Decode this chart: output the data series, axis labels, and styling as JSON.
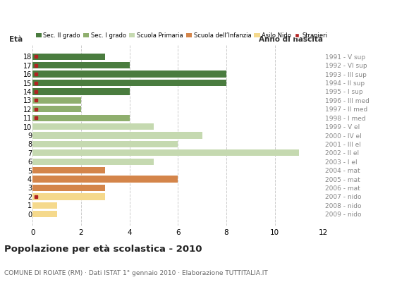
{
  "ages": [
    18,
    17,
    16,
    15,
    14,
    13,
    12,
    11,
    10,
    9,
    8,
    7,
    6,
    5,
    4,
    3,
    2,
    1,
    0
  ],
  "right_labels": [
    "1991 - V sup",
    "1992 - VI sup",
    "1993 - III sup",
    "1994 - II sup",
    "1995 - I sup",
    "1996 - III med",
    "1997 - II med",
    "1998 - I med",
    "1999 - V el",
    "2000 - IV el",
    "2001 - III el",
    "2002 - II el",
    "2003 - I el",
    "2004 - mat",
    "2005 - mat",
    "2006 - mat",
    "2007 - nido",
    "2008 - nido",
    "2009 - nido"
  ],
  "bar_values": [
    3,
    4,
    8,
    8,
    4,
    2,
    2,
    4,
    5,
    7,
    6,
    11,
    5,
    3,
    6,
    3,
    3,
    1,
    1
  ],
  "bar_colors": [
    "#4a7c3f",
    "#4a7c3f",
    "#4a7c3f",
    "#4a7c3f",
    "#4a7c3f",
    "#8faf6e",
    "#8faf6e",
    "#8faf6e",
    "#c5d9b0",
    "#c5d9b0",
    "#c5d9b0",
    "#c5d9b0",
    "#c5d9b0",
    "#d4854a",
    "#d4854a",
    "#d4854a",
    "#f5d98c",
    "#f5d98c",
    "#f5d98c"
  ],
  "stranieri_marker_ages": [
    18,
    17,
    16,
    15,
    14,
    13,
    12,
    11,
    2
  ],
  "legend_labels": [
    "Sec. II grado",
    "Sec. I grado",
    "Scuola Primaria",
    "Scuola dell’Infanzia",
    "Asilo Nido",
    "Stranieri"
  ],
  "legend_colors": [
    "#4a7c3f",
    "#8faf6e",
    "#c5d9b0",
    "#d4854a",
    "#f5d98c",
    "#b22222"
  ],
  "title": "Popolazione per età scolastica - 2010",
  "subtitle": "COMUNE DI ROIATE (RM) · Dati ISTAT 1° gennaio 2010 · Elaborazione TUTTITALIA.IT",
  "eta_label": "Età",
  "anno_label": "Anno di nascita",
  "xlim": [
    0,
    12
  ],
  "xticks": [
    0,
    2,
    4,
    6,
    8,
    10,
    12
  ],
  "background_color": "#ffffff",
  "grid_color": "#cccccc"
}
